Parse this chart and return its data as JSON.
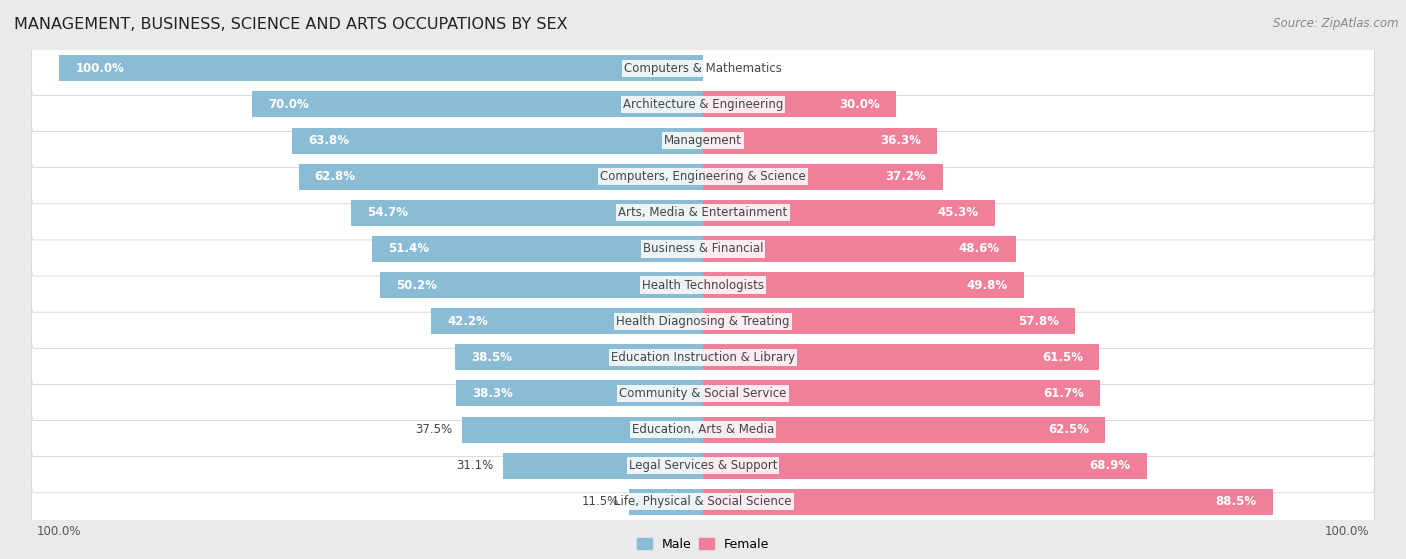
{
  "title": "MANAGEMENT, BUSINESS, SCIENCE AND ARTS OCCUPATIONS BY SEX",
  "source": "Source: ZipAtlas.com",
  "categories": [
    "Computers & Mathematics",
    "Architecture & Engineering",
    "Management",
    "Computers, Engineering & Science",
    "Arts, Media & Entertainment",
    "Business & Financial",
    "Health Technologists",
    "Health Diagnosing & Treating",
    "Education Instruction & Library",
    "Community & Social Service",
    "Education, Arts & Media",
    "Legal Services & Support",
    "Life, Physical & Social Science"
  ],
  "male": [
    100.0,
    70.0,
    63.8,
    62.8,
    54.7,
    51.4,
    50.2,
    42.2,
    38.5,
    38.3,
    37.5,
    31.1,
    11.5
  ],
  "female": [
    0.0,
    30.0,
    36.3,
    37.2,
    45.3,
    48.6,
    49.8,
    57.8,
    61.5,
    61.7,
    62.5,
    68.9,
    88.5
  ],
  "male_color": "#8bbcd6",
  "female_color": "#f08099",
  "bg_color": "#eaeaea",
  "bar_bg_color": "#ffffff",
  "title_fontsize": 11.5,
  "label_fontsize": 8.5,
  "source_fontsize": 8.5,
  "legend_fontsize": 9
}
